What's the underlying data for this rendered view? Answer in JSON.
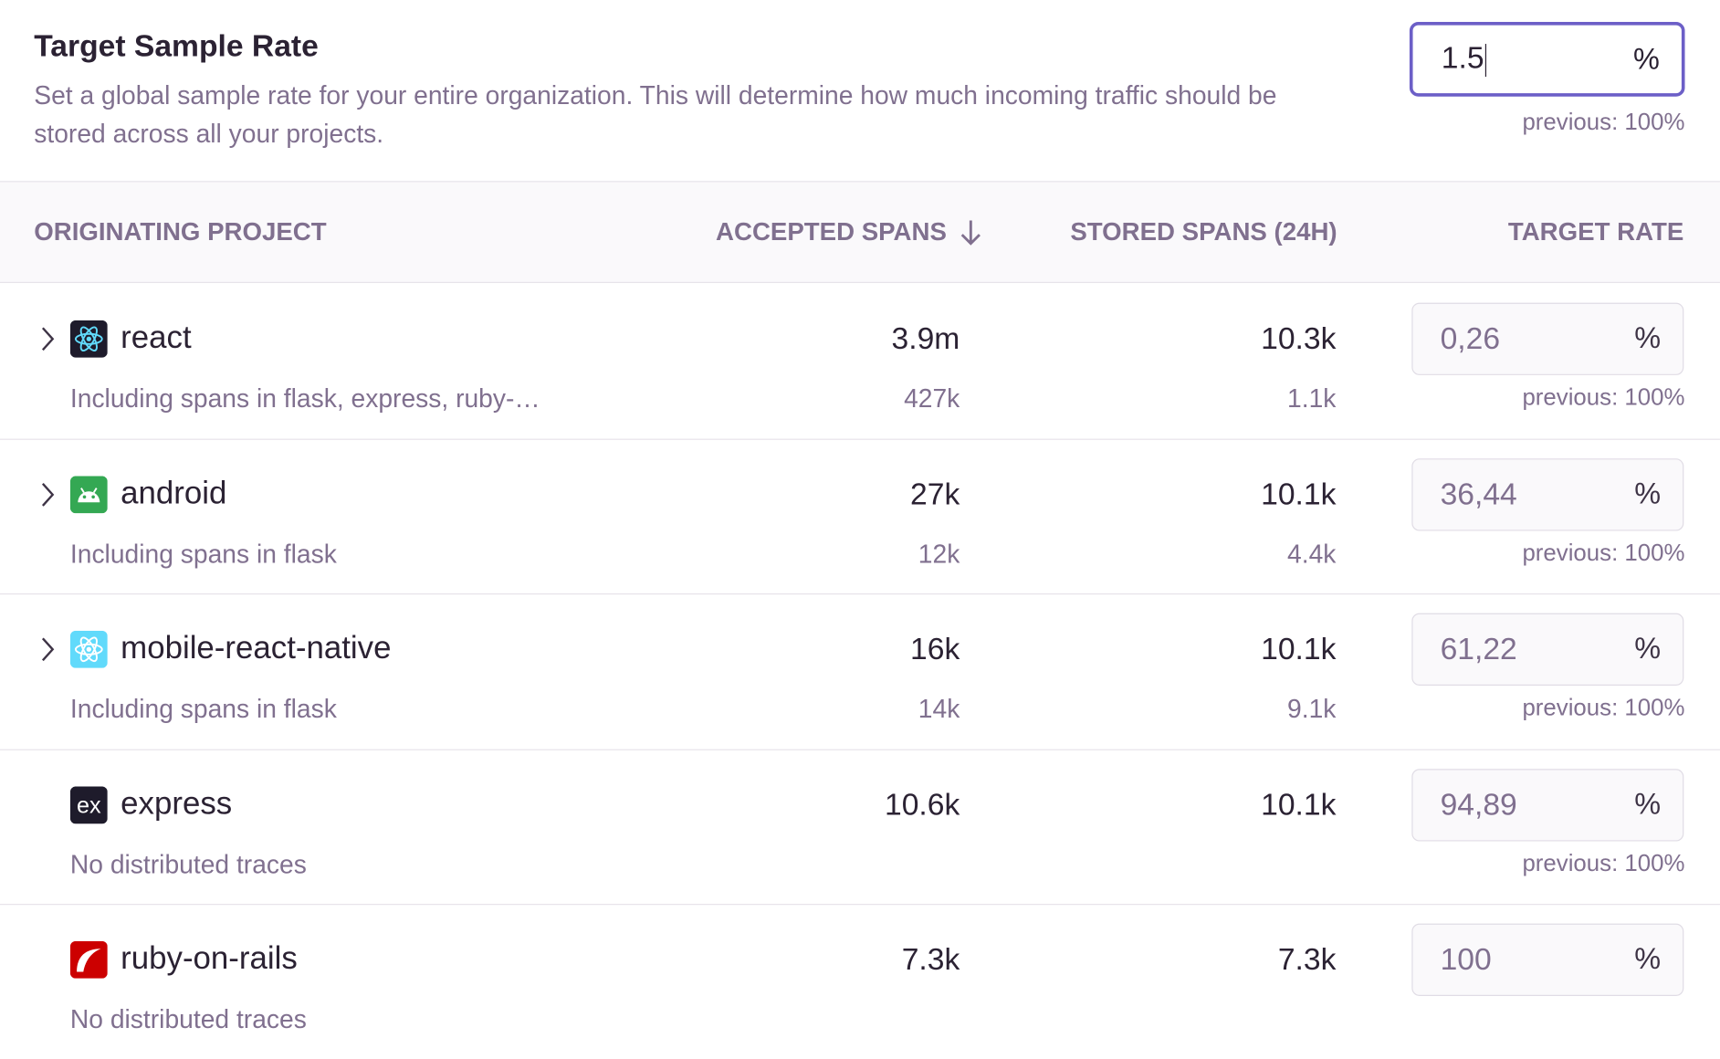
{
  "header": {
    "title": "Target Sample Rate",
    "description": "Set a global sample rate for your entire organization. This will determine how much incoming traffic should be stored across all your projects.",
    "input_value": "1.5",
    "unit": "%",
    "previous": "previous: 100%"
  },
  "table": {
    "columns": [
      "ORIGINATING PROJECT",
      "ACCEPTED SPANS",
      "STORED SPANS (24H)",
      "TARGET RATE"
    ],
    "rows": [
      {
        "project": "react",
        "expandable": true,
        "subtitle": "Including spans in flask, express, ruby-…",
        "accepted": "3.9m",
        "accepted_sub": "427k",
        "stored": "10.3k",
        "stored_sub": "1.1k",
        "target_rate": "0,26",
        "unit": "%",
        "previous": "previous: 100%"
      },
      {
        "project": "android",
        "expandable": true,
        "subtitle": "Including spans in flask",
        "accepted": "27k",
        "accepted_sub": "12k",
        "stored": "10.1k",
        "stored_sub": "4.4k",
        "target_rate": "36,44",
        "unit": "%",
        "previous": "previous: 100%"
      },
      {
        "project": "mobile-react-native",
        "expandable": true,
        "subtitle": "Including spans in flask",
        "accepted": "16k",
        "accepted_sub": "14k",
        "stored": "10.1k",
        "stored_sub": "9.1k",
        "target_rate": "61,22",
        "unit": "%",
        "previous": "previous: 100%"
      },
      {
        "project": "express",
        "expandable": false,
        "subtitle": "No distributed traces",
        "accepted": "10.6k",
        "stored": "10.1k",
        "target_rate": "94,89",
        "unit": "%",
        "previous": "previous: 100%"
      },
      {
        "project": "ruby-on-rails",
        "expandable": false,
        "subtitle": "No distributed traces",
        "accepted": "7.3k",
        "stored": "7.3k",
        "target_rate": "100",
        "unit": "%"
      }
    ]
  }
}
